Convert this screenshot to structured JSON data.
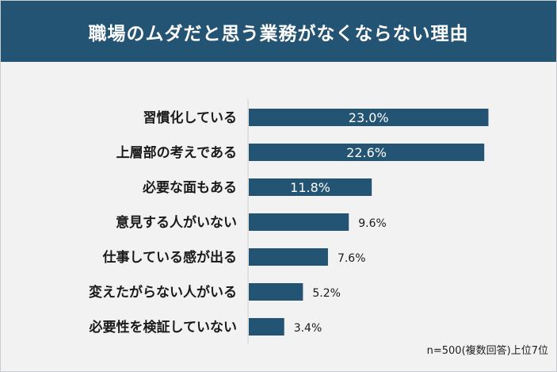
{
  "header": {
    "title": "職場のムダだと思う業務がなくならない理由"
  },
  "colors": {
    "header_bg": "#245473",
    "bar": "#245473",
    "panel_bg": "#f2f2f2"
  },
  "chart_data": {
    "type": "bar",
    "orientation": "horizontal",
    "title": "職場のムダだと思う業務がなくならない理由",
    "categories": [
      "習慣化している",
      "上層部の考えである",
      "必要な面もある",
      "意見する人がいない",
      "仕事している感が出る",
      "変えたがらない人がいる",
      "必要性を検証していない"
    ],
    "values": [
      23.0,
      22.6,
      11.8,
      9.6,
      7.6,
      5.2,
      3.4
    ],
    "value_labels": [
      "23.0%",
      "22.6%",
      "11.8%",
      "9.6%",
      "7.6%",
      "5.2%",
      "3.4%"
    ],
    "unit": "%",
    "grid": false,
    "legend": "none"
  },
  "footnote": "n=500(複数回答)上位7位"
}
